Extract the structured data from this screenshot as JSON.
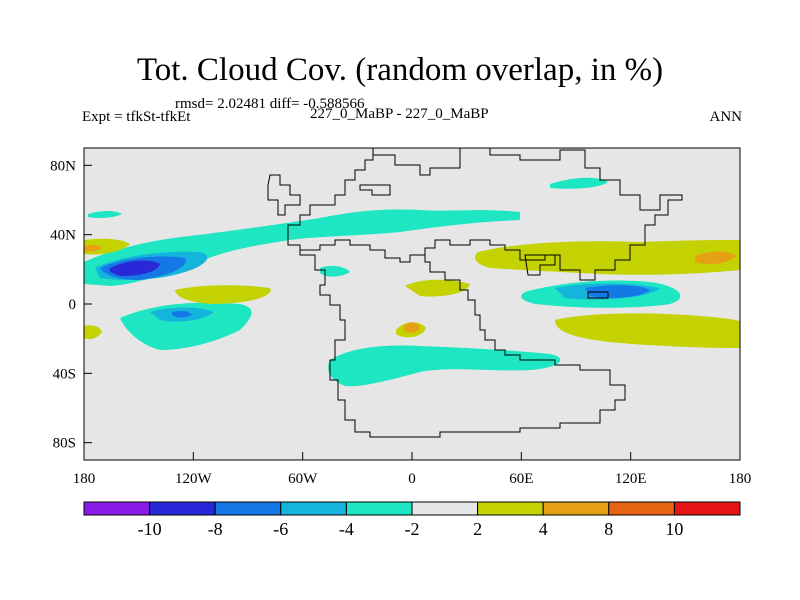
{
  "title": "Tot. Cloud Cov. (random overlap, in %)",
  "stats": "rmsd= 2.02481 diff= -0.588566",
  "expt_label": "Expt = tfkSt-tfkEt",
  "case_label": "227_0_MaBP - 227_0_MaBP",
  "season": "ANN",
  "lat_ticks": [
    "80N",
    "40N",
    "0",
    "40S",
    "80S"
  ],
  "lat_values": [
    80,
    40,
    0,
    -40,
    -80
  ],
  "lon_ticks": [
    "180",
    "120W",
    "60W",
    "0",
    "60E",
    "120E",
    "180"
  ],
  "lon_values": [
    -180,
    -120,
    -60,
    0,
    60,
    120,
    180
  ],
  "colorbar": {
    "colors": [
      "#8a1be6",
      "#2828d8",
      "#1478e6",
      "#14b4dc",
      "#1ee6c3",
      "#e6e6e6",
      "#c3d200",
      "#e6a014",
      "#e66414",
      "#e61414"
    ],
    "labels": [
      "-10",
      "-8",
      "-6",
      "-4",
      "-2",
      "2",
      "4",
      "8",
      "10"
    ],
    "levels": [
      -10,
      -8,
      -6,
      -4,
      -2,
      2,
      4,
      8,
      10
    ]
  },
  "colors": {
    "background_field": "#e6e6e6",
    "coast": "#000000"
  }
}
